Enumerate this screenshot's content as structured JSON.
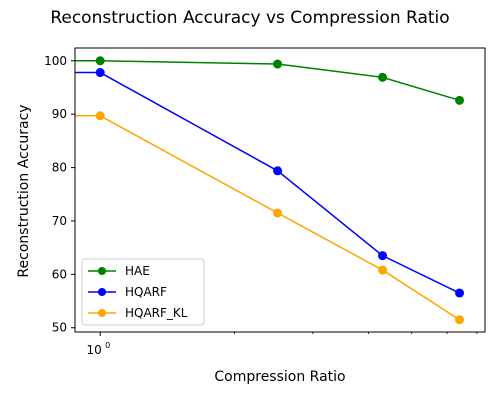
{
  "chart_data": {
    "type": "line",
    "title": "Reconstruction Accuracy vs Compression Ratio",
    "xlabel": "Compression Ratio",
    "ylabel": "Reconstruction Accuracy",
    "x_scale": "log",
    "x_tick_labels": [
      {
        "value": 1,
        "label": "10^0",
        "base": "10",
        "exp": "0"
      }
    ],
    "yticks": [
      50,
      60,
      70,
      80,
      90,
      100
    ],
    "ylim": [
      49.2,
      102.4
    ],
    "grid": false,
    "legend_position": "lower-left",
    "x": [
      1,
      2.5,
      4.3,
      6.4
    ],
    "series": [
      {
        "name": "HAE",
        "color": "#008000",
        "values": [
          100.0,
          99.4,
          96.9,
          92.6
        ]
      },
      {
        "name": "HQARF",
        "color": "#0000ff",
        "values": [
          97.8,
          79.4,
          63.5,
          56.5
        ]
      },
      {
        "name": "HQARF_KL",
        "color": "#ffa500",
        "values": [
          89.7,
          71.5,
          60.8,
          51.5
        ]
      }
    ]
  }
}
